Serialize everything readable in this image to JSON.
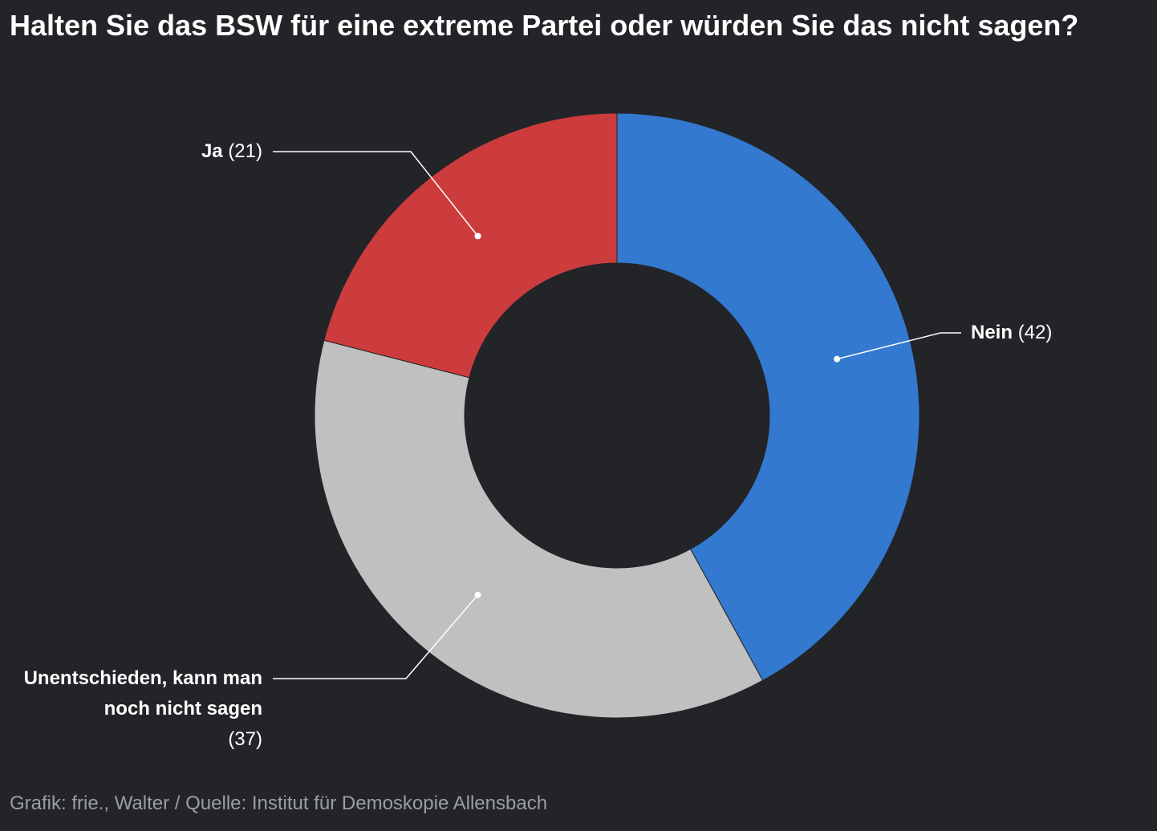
{
  "title": "Halten Sie das BSW für eine extreme Partei oder würden Sie das nicht sagen?",
  "source": "Grafik: frie., Walter / Quelle: Institut für Demoskopie Allensbach",
  "chart_data": {
    "type": "pie",
    "variant": "donut",
    "title": "Halten Sie das BSW für eine extreme Partei oder würden Sie das nicht sagen?",
    "unit": "%",
    "start": "12 o'clock, clockwise",
    "categories": [
      "Nein",
      "Unentschieden, kann man noch nicht sagen",
      "Ja"
    ],
    "values": [
      42,
      37,
      21
    ],
    "colors": [
      "#3379cf",
      "#c0c0c0",
      "#cc3c3c"
    ],
    "labels": [
      {
        "name": "Nein",
        "value_text": "(42)"
      },
      {
        "name": "Unentschieden, kann man noch nicht sagen",
        "value_text": "(37)"
      },
      {
        "name": "Ja",
        "value_text": "(21)"
      }
    ]
  }
}
